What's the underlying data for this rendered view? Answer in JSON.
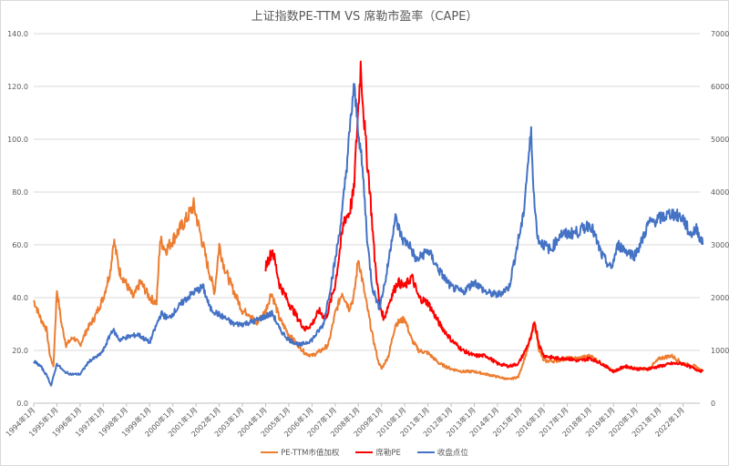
{
  "chart_data": {
    "type": "line",
    "title": "上证指数PE-TTM VS 席勒市盈率（CAPE）",
    "xlabel": "",
    "ylabel_left": "",
    "ylabel_right": "",
    "ylim_left": [
      0,
      140
    ],
    "ylim_right": [
      0,
      7000
    ],
    "yticks_left": [
      "0.0",
      "20.0",
      "40.0",
      "60.0",
      "80.0",
      "100.0",
      "120.0",
      "140.0"
    ],
    "yticks_right": [
      "0",
      "1000",
      "2000",
      "3000",
      "4000",
      "5000",
      "6000",
      "7000"
    ],
    "grid": true,
    "legend_position": "bottom",
    "categories": [
      "1994年1月",
      "1995年1月",
      "1996年1月",
      "1997年1月",
      "1998年1月",
      "1999年1月",
      "2000年1月",
      "2001年1月",
      "2002年1月",
      "2003年1月",
      "2004年1月",
      "2005年1月",
      "2006年1月",
      "2007年1月",
      "2008年1月",
      "2009年1月",
      "2010年1月",
      "2011年1月",
      "2012年1月",
      "2013年1月",
      "2014年1月",
      "2015年1月",
      "2016年1月",
      "2017年1月",
      "2018年1月",
      "2019年1月",
      "2020年1月",
      "2021年1月",
      "2022年1月"
    ],
    "series": [
      {
        "name": "PE-TTM市值加权",
        "axis": "left",
        "color": "#ED7D31",
        "x": [
          1994.0,
          1994.3,
          1994.55,
          1994.7,
          1994.85,
          1995.0,
          1995.2,
          1995.4,
          1995.7,
          1996.0,
          1996.3,
          1996.6,
          1997.0,
          1997.3,
          1997.45,
          1997.7,
          1998.0,
          1998.3,
          1998.6,
          1999.0,
          1999.3,
          1999.45,
          1999.7,
          2000.0,
          2000.3,
          2000.6,
          2000.9,
          2001.3,
          2001.5,
          2001.8,
          2002.0,
          2002.2,
          2002.5,
          2003.0,
          2003.3,
          2003.6,
          2004.0,
          2004.25,
          2004.6,
          2005.0,
          2005.4,
          2005.7,
          2006.0,
          2006.4,
          2006.7,
          2007.0,
          2007.3,
          2007.6,
          2007.8,
          2008.0,
          2008.3,
          2008.6,
          2008.85,
          2009.0,
          2009.3,
          2009.6,
          2010.0,
          2010.3,
          2010.6,
          2011.0,
          2011.5,
          2012.0,
          2012.5,
          2013.0,
          2013.5,
          2014.0,
          2014.5,
          2014.9,
          2015.2,
          2015.45,
          2015.6,
          2015.8,
          2016.0,
          2016.5,
          2017.0,
          2017.5,
          2018.0,
          2018.5,
          2019.0,
          2019.5,
          2020.0,
          2020.5,
          2021.0,
          2021.5,
          2022.0,
          2022.5,
          2022.85
        ],
        "values": [
          39,
          32,
          28,
          18,
          14,
          43,
          30,
          22,
          25,
          22,
          28,
          32,
          40,
          50,
          62,
          50,
          45,
          40,
          46,
          40,
          38,
          62,
          58,
          62,
          66,
          70,
          75,
          60,
          52,
          42,
          60,
          52,
          45,
          35,
          34,
          30,
          35,
          42,
          32,
          26,
          22,
          19,
          18,
          20,
          22,
          34,
          42,
          36,
          40,
          55,
          40,
          26,
          16,
          13,
          18,
          30,
          32,
          24,
          20,
          19,
          15,
          13,
          12,
          12,
          11,
          10,
          9,
          10,
          18,
          25,
          30,
          20,
          16,
          16,
          17,
          17,
          18,
          15,
          12,
          14,
          13,
          13,
          17,
          18,
          15,
          14,
          12
        ]
      },
      {
        "name": "席勒PE",
        "axis": "left",
        "color": "#FF0000",
        "x": [
          2004.0,
          2004.15,
          2004.3,
          2004.6,
          2005.0,
          2005.4,
          2005.7,
          2006.0,
          2006.3,
          2006.6,
          2007.0,
          2007.2,
          2007.4,
          2007.6,
          2007.8,
          2007.95,
          2008.1,
          2008.3,
          2008.5,
          2008.7,
          2008.9,
          2009.1,
          2009.4,
          2009.7,
          2010.0,
          2010.3,
          2010.6,
          2011.0,
          2011.5,
          2012.0,
          2012.5,
          2013.0,
          2013.5,
          2014.0,
          2014.5,
          2014.9,
          2015.2,
          2015.45,
          2015.6,
          2015.8,
          2016.0,
          2016.5,
          2017.0,
          2017.5,
          2018.0,
          2018.5,
          2019.0,
          2019.5,
          2020.0,
          2020.5,
          2021.0,
          2021.5,
          2022.0,
          2022.5,
          2022.85
        ],
        "values": [
          52,
          55,
          58,
          45,
          38,
          32,
          28,
          30,
          35,
          32,
          45,
          58,
          70,
          72,
          80,
          105,
          128,
          100,
          80,
          55,
          38,
          32,
          40,
          46,
          44,
          48,
          40,
          38,
          30,
          24,
          20,
          18,
          18,
          15,
          14,
          15,
          20,
          25,
          31,
          22,
          18,
          17,
          17,
          16,
          17,
          15,
          12,
          14,
          13,
          13,
          14,
          15,
          15,
          13,
          12
        ]
      },
      {
        "name": "收盘点位",
        "axis": "right",
        "color": "#4472C4",
        "x": [
          1994.0,
          1994.3,
          1994.6,
          1994.75,
          1995.0,
          1995.3,
          1995.6,
          1996.0,
          1996.4,
          1996.8,
          1997.0,
          1997.4,
          1997.7,
          1998.0,
          1998.5,
          1999.0,
          1999.4,
          1999.5,
          1999.8,
          2000.0,
          2000.5,
          2000.9,
          2001.3,
          2001.6,
          2001.9,
          2002.3,
          2002.6,
          2003.0,
          2003.5,
          2004.0,
          2004.3,
          2004.6,
          2005.0,
          2005.5,
          2006.0,
          2006.5,
          2007.0,
          2007.3,
          2007.6,
          2007.8,
          2008.0,
          2008.2,
          2008.4,
          2008.6,
          2008.9,
          2009.2,
          2009.5,
          2009.6,
          2009.9,
          2010.2,
          2010.5,
          2011.0,
          2011.5,
          2012.0,
          2012.5,
          2013.0,
          2013.5,
          2014.0,
          2014.5,
          2014.9,
          2015.1,
          2015.3,
          2015.45,
          2015.6,
          2015.75,
          2016.0,
          2016.3,
          2016.7,
          2017.0,
          2017.5,
          2018.0,
          2018.5,
          2018.9,
          2019.2,
          2019.5,
          2019.9,
          2020.2,
          2020.5,
          2021.0,
          2021.5,
          2022.0,
          2022.3,
          2022.6,
          2022.85
        ],
        "values": [
          800,
          700,
          500,
          330,
          750,
          600,
          550,
          550,
          800,
          900,
          1000,
          1400,
          1200,
          1250,
          1300,
          1150,
          1600,
          1700,
          1600,
          1700,
          1950,
          2100,
          2200,
          1800,
          1700,
          1600,
          1500,
          1500,
          1550,
          1650,
          1700,
          1400,
          1200,
          1100,
          1200,
          1500,
          2700,
          3600,
          5000,
          6000,
          5200,
          4300,
          3000,
          2200,
          1800,
          2400,
          3300,
          3500,
          3100,
          3000,
          2700,
          2900,
          2500,
          2200,
          2100,
          2300,
          2100,
          2050,
          2200,
          3100,
          3500,
          4500,
          5100,
          3700,
          3100,
          3000,
          2900,
          3200,
          3200,
          3250,
          3400,
          2800,
          2550,
          3000,
          2900,
          2800,
          3050,
          3400,
          3500,
          3600,
          3500,
          3200,
          3300,
          3000
        ]
      }
    ]
  },
  "legend": [
    {
      "label": "PE-TTM市值加权",
      "color": "#ED7D31"
    },
    {
      "label": "席勒PE",
      "color": "#FF0000"
    },
    {
      "label": "收盘点位",
      "color": "#4472C4"
    }
  ]
}
